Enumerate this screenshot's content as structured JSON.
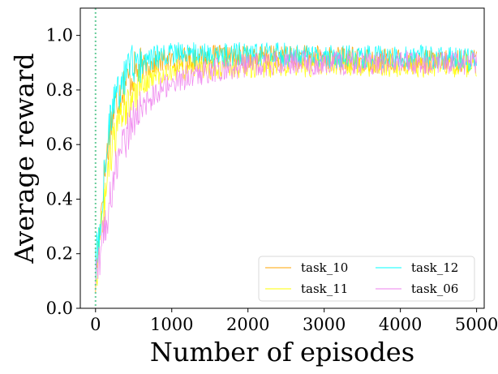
{
  "chart_data": {
    "type": "line",
    "title": "",
    "xlabel": "Number of episodes",
    "ylabel": "Average reward",
    "xlim": [
      -200,
      5100
    ],
    "ylim": [
      0.0,
      1.1
    ],
    "xticks": [
      0,
      1000,
      2000,
      3000,
      4000,
      5000
    ],
    "xtick_labels": [
      "0",
      "1000",
      "2000",
      "3000",
      "4000",
      "5000"
    ],
    "yticks": [
      0.0,
      0.2,
      0.4,
      0.6,
      0.8,
      1.0
    ],
    "ytick_labels": [
      "0.0",
      "0.2",
      "0.4",
      "0.6",
      "0.8",
      "1.0"
    ],
    "grid": false,
    "legend_position": "lower-right",
    "legend_columns": 2,
    "vertical_marker": {
      "x": 0,
      "style": "dotted",
      "color": "#66cc99"
    },
    "series": [
      {
        "name": "task_10",
        "color": "#ffa500",
        "x": [
          0,
          100,
          200,
          300,
          400,
          500,
          600,
          800,
          1000,
          1500,
          2000,
          2500,
          3000,
          3500,
          4000,
          4500,
          5000
        ],
        "y": [
          0.1,
          0.45,
          0.68,
          0.78,
          0.83,
          0.86,
          0.88,
          0.9,
          0.91,
          0.92,
          0.92,
          0.92,
          0.92,
          0.91,
          0.91,
          0.9,
          0.91
        ],
        "noise": 0.045
      },
      {
        "name": "task_11",
        "color": "#ffff00",
        "x": [
          0,
          100,
          200,
          300,
          400,
          500,
          600,
          800,
          1000,
          1500,
          2000,
          2500,
          3000,
          3500,
          4000,
          4500,
          5000
        ],
        "y": [
          0.1,
          0.35,
          0.55,
          0.66,
          0.74,
          0.79,
          0.82,
          0.85,
          0.87,
          0.88,
          0.89,
          0.89,
          0.89,
          0.89,
          0.89,
          0.89,
          0.89
        ],
        "noise": 0.045
      },
      {
        "name": "task_12",
        "color": "#00ffff",
        "x": [
          0,
          100,
          200,
          300,
          400,
          500,
          600,
          800,
          1000,
          1500,
          2000,
          2500,
          3000,
          3500,
          4000,
          4500,
          5000
        ],
        "y": [
          0.15,
          0.45,
          0.7,
          0.8,
          0.86,
          0.89,
          0.9,
          0.92,
          0.93,
          0.93,
          0.93,
          0.93,
          0.92,
          0.92,
          0.92,
          0.92,
          0.91
        ],
        "noise": 0.045
      },
      {
        "name": "task_06",
        "color": "#ee82ee",
        "x": [
          0,
          100,
          200,
          300,
          400,
          500,
          600,
          800,
          1000,
          1500,
          2000,
          2500,
          3000,
          3500,
          4000,
          4500,
          5000
        ],
        "y": [
          0.12,
          0.25,
          0.42,
          0.55,
          0.63,
          0.69,
          0.73,
          0.79,
          0.83,
          0.87,
          0.89,
          0.9,
          0.9,
          0.9,
          0.9,
          0.9,
          0.9
        ],
        "noise": 0.045
      }
    ]
  }
}
